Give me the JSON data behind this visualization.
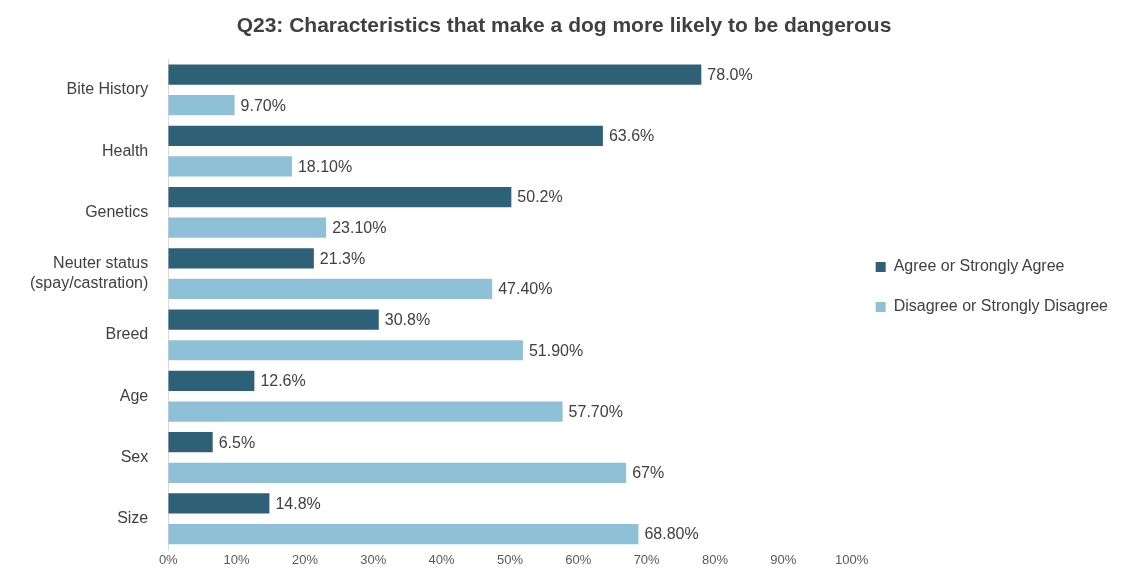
{
  "chart_data": {
    "type": "bar",
    "orientation": "horizontal",
    "title": "Q23: Characteristics that make a dog more likely to be dangerous",
    "categories": [
      "Bite History",
      "Health",
      "Genetics",
      "Neuter status\n(spay/castration)",
      "Breed",
      "Age",
      "Sex",
      "Size"
    ],
    "series": [
      {
        "name": "Agree or Strongly Agree",
        "color": "#2e6178",
        "values": [
          78.0,
          63.6,
          50.2,
          21.3,
          30.8,
          12.6,
          6.5,
          14.8
        ],
        "value_labels": [
          "78.0%",
          "63.6%",
          "50.2%",
          "21.3%",
          "30.8%",
          "12.6%",
          "6.5%",
          "14.8%"
        ]
      },
      {
        "name": "Disagree or Strongly Disagree",
        "color": "#8ec1d7",
        "values": [
          9.7,
          18.1,
          23.1,
          47.4,
          51.9,
          57.7,
          67,
          68.8
        ],
        "value_labels": [
          "9.70%",
          "18.10%",
          "23.10%",
          "47.40%",
          "51.90%",
          "57.70%",
          "67%",
          "68.80%"
        ]
      }
    ],
    "xlim": [
      0,
      100
    ],
    "xticks": [
      {
        "value": 0,
        "label": "0%"
      },
      {
        "value": 10,
        "label": "10%"
      },
      {
        "value": 20,
        "label": "20%"
      },
      {
        "value": 30,
        "label": "30%"
      },
      {
        "value": 40,
        "label": "40%"
      },
      {
        "value": 50,
        "label": "50%"
      },
      {
        "value": 60,
        "label": "60%"
      },
      {
        "value": 70,
        "label": "70%"
      },
      {
        "value": 80,
        "label": "80%"
      },
      {
        "value": 90,
        "label": "90%"
      },
      {
        "value": 100,
        "label": "100%"
      }
    ],
    "grid": false,
    "legend": "right"
  }
}
